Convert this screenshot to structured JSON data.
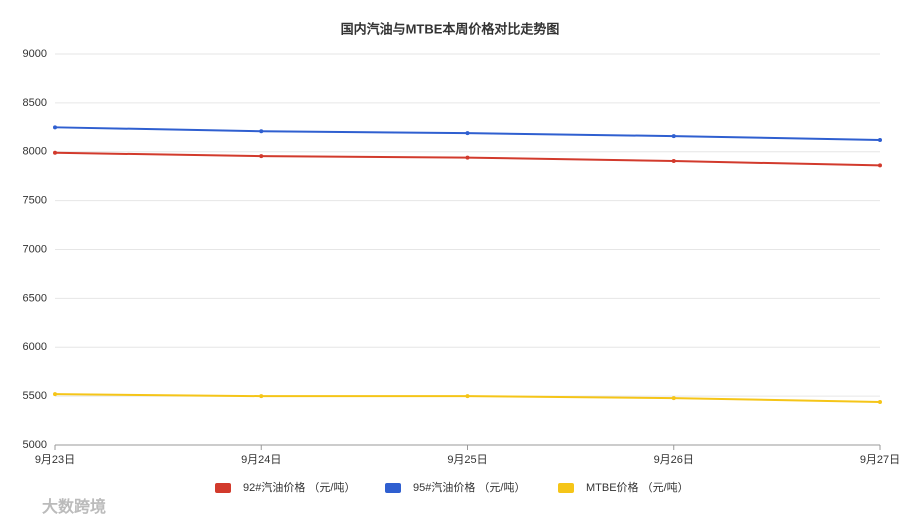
{
  "chart_data": {
    "type": "line",
    "title": "国内汽油与MTBE本周价格对比走势图",
    "categories": [
      "9月23日",
      "9月24日",
      "9月25日",
      "9月26日",
      "9月27日"
    ],
    "series": [
      {
        "name": "92#汽油价格 （元/吨）",
        "color": "#d23a2c",
        "values": [
          7990,
          7955,
          7940,
          7905,
          7860
        ]
      },
      {
        "name": "95#汽油价格 （元/吨）",
        "color": "#2f5fd0",
        "values": [
          8250,
          8210,
          8190,
          8160,
          8120
        ]
      },
      {
        "name": "MTBE价格 （元/吨）",
        "color": "#f5c518",
        "values": [
          5520,
          5500,
          5500,
          5480,
          5440
        ]
      }
    ],
    "ylim": [
      5000,
      9000
    ],
    "yticks": [
      5000,
      5500,
      6000,
      6500,
      7000,
      7500,
      8000,
      8500,
      9000
    ],
    "grid": true,
    "legend": "bottom",
    "watermark": "大数跨境"
  }
}
